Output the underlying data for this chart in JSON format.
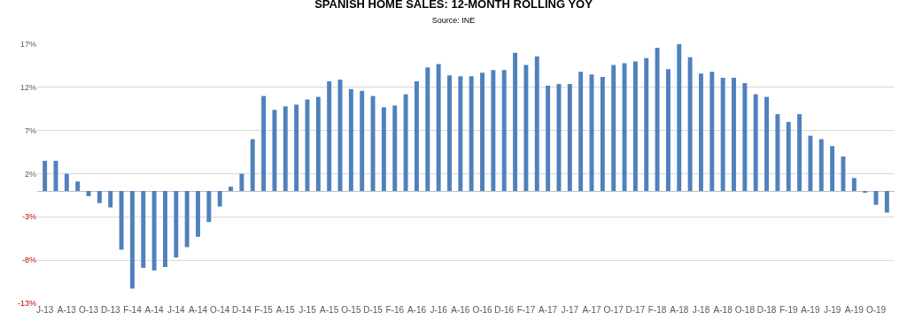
{
  "chart_data": {
    "type": "bar",
    "title": "SPANISH HOME SALES: 12-MONTH ROLLING YOY",
    "subtitle": "Source: INE",
    "categories": [
      "J-13",
      null,
      "A-13",
      null,
      "O-13",
      null,
      "D-13",
      null,
      "F-14",
      null,
      "A-14",
      null,
      "J-14",
      null,
      "A-14",
      null,
      "O-14",
      null,
      "D-14",
      null,
      "F-15",
      null,
      "A-15",
      null,
      "J-15",
      null,
      "A-15",
      null,
      "O-15",
      null,
      "D-15",
      null,
      "F-16",
      null,
      "A-16",
      null,
      "J-16",
      null,
      "A-16",
      null,
      "O-16",
      null,
      "D-16",
      null,
      "F-17",
      null,
      "A-17",
      null,
      "J-17",
      null,
      "A-17",
      null,
      "O-17",
      null,
      "D-17",
      null,
      "F-18",
      null,
      "A-18",
      null,
      "J-18",
      null,
      "A-18",
      null,
      "O-18",
      null,
      "D-18",
      null,
      "F-19",
      null,
      "A-19",
      null,
      "J-19",
      null,
      "A-19",
      null,
      "O-19",
      null
    ],
    "values": [
      3.5,
      3.5,
      2.0,
      1.1,
      -0.6,
      -1.4,
      -1.9,
      -6.8,
      -11.3,
      -8.9,
      -9.2,
      -8.8,
      -7.7,
      -6.5,
      -5.3,
      -3.6,
      -1.8,
      0.5,
      2.0,
      6.0,
      11.0,
      9.4,
      9.8,
      10.0,
      10.6,
      10.9,
      12.7,
      12.9,
      11.8,
      11.6,
      11.0,
      9.7,
      9.9,
      11.2,
      12.7,
      14.3,
      14.7,
      13.4,
      13.3,
      13.3,
      13.7,
      14.0,
      14.0,
      16.0,
      14.6,
      15.6,
      12.2,
      12.4,
      12.4,
      13.8,
      13.5,
      13.2,
      14.6,
      14.8,
      15.0,
      15.4,
      16.6,
      14.1,
      17.0,
      15.5,
      13.6,
      13.8,
      13.1,
      13.1,
      12.5,
      11.2,
      10.9,
      8.9,
      8.0,
      8.9,
      6.4,
      6.0,
      5.2,
      4.0,
      1.5,
      -0.2,
      -1.6,
      -2.5
    ],
    "color": "#4f81bd",
    "ylim": [
      -13,
      17
    ],
    "yticks": [
      {
        "value": -13,
        "label": "-13%"
      },
      {
        "value": -8,
        "label": "-8%"
      },
      {
        "value": -3,
        "label": "-3%"
      },
      {
        "value": 2,
        "label": "2%"
      },
      {
        "value": 7,
        "label": "7%"
      },
      {
        "value": 12,
        "label": "12%"
      },
      {
        "value": 17,
        "label": "17%"
      }
    ],
    "grid": "y",
    "legend": false
  }
}
